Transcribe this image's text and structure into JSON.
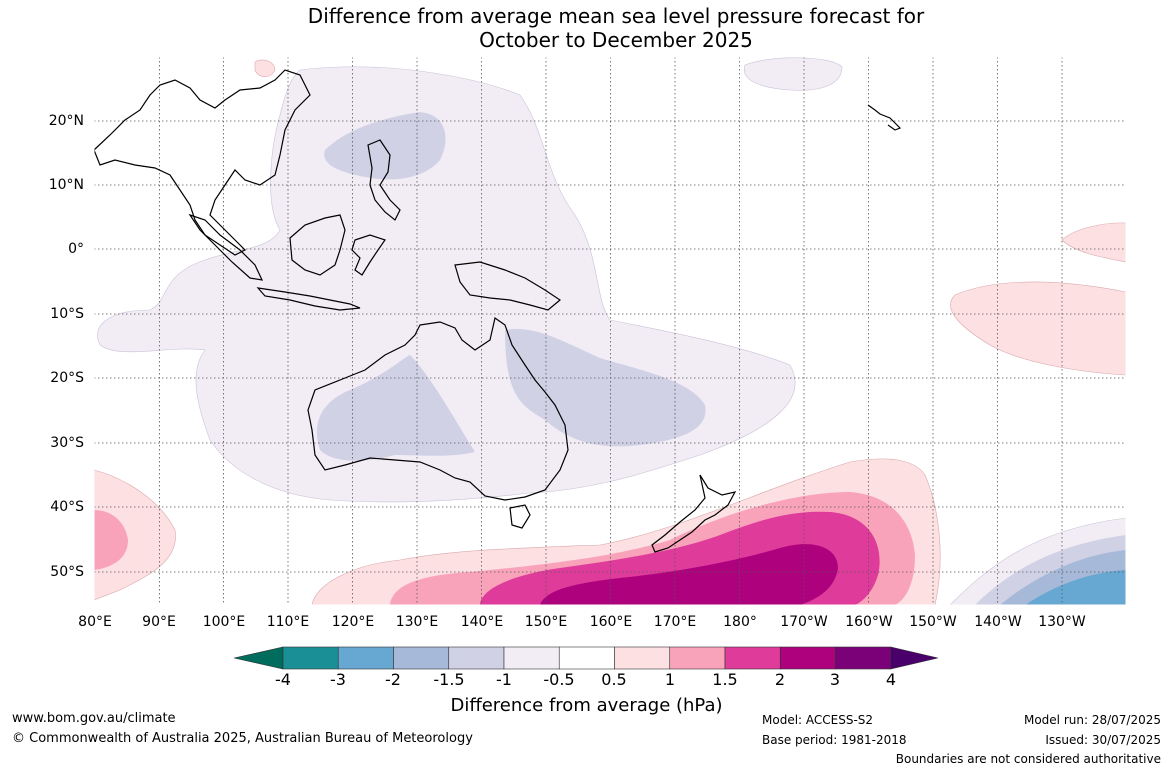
{
  "title_line1": "Difference from average mean sea level pressure forecast for",
  "title_line2": "October to December 2025",
  "lon_labels": [
    "80°E",
    "90°E",
    "100°E",
    "110°E",
    "120°E",
    "130°E",
    "140°E",
    "150°E",
    "160°E",
    "170°E",
    "180°",
    "170°W",
    "160°W",
    "150°W",
    "140°W",
    "130°W"
  ],
  "lat_labels": [
    "20°N",
    "10°N",
    "0°",
    "10°S",
    "20°S",
    "30°S",
    "40°S",
    "50°S"
  ],
  "colorbar": {
    "ticks": [
      "-4",
      "-3",
      "-2",
      "-1.5",
      "-1",
      "-0.5",
      "0.5",
      "1",
      "1.5",
      "2",
      "3",
      "4"
    ],
    "colors": [
      "#006c5e",
      "#1b8f96",
      "#67a8d2",
      "#a6b9d9",
      "#d1d1e6",
      "#f2ecf5",
      "#ffffff",
      "#fde0e2",
      "#f9a3bb",
      "#df3b9a",
      "#ae017e",
      "#7a0177",
      "#49006a"
    ],
    "title": "Difference from average (hPa)"
  },
  "footer": {
    "url": "www.bom.gov.au/climate",
    "copyright": "© Commonwealth of Australia 2025, Australian Bureau of Meteorology",
    "model": "Model: ACCESS-S2",
    "base_period": "Base period: 1981-2018",
    "model_run": "Model run: 28/07/2025",
    "issued": "Issued: 30/07/2025",
    "disclaimer": "Boundaries are not considered authoritative"
  }
}
